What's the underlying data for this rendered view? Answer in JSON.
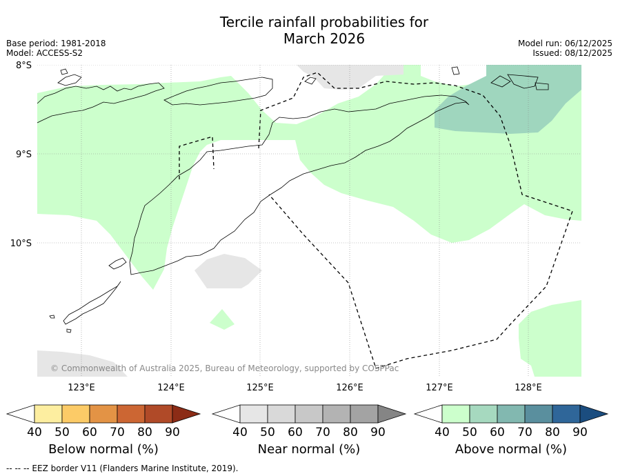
{
  "title_line1": "Tercile rainfall probabilities for",
  "title_line2": "March 2026",
  "base_period": "Base period: 1981-2018",
  "model": "Model: ACCESS-S2",
  "model_run": "Model run: 06/12/2025",
  "issued": "Issued: 08/12/2025",
  "copyright": "© Commonwealth of Australia 2025, Bureau of Meteorology, supported by COSPPac",
  "lat_labels": [
    "8°S",
    "9°S",
    "10°S"
  ],
  "lon_labels": [
    "123°E",
    "124°E",
    "125°E",
    "126°E",
    "127°E",
    "128°E"
  ],
  "colorbars": [
    {
      "title": "Below normal (%)",
      "ticks": [
        "40",
        "50",
        "60",
        "70",
        "80",
        "90"
      ],
      "colors": [
        "#ffffff",
        "#fdeea0",
        "#fccb67",
        "#e39345",
        "#cc6633",
        "#b04a28",
        "#8c2c16"
      ]
    },
    {
      "title": "Near normal (%)",
      "ticks": [
        "40",
        "50",
        "60",
        "70",
        "80",
        "90"
      ],
      "colors": [
        "#ffffff",
        "#e6e6e6",
        "#d9d9d9",
        "#c8c8c8",
        "#b3b3b3",
        "#a3a3a3",
        "#858585"
      ]
    },
    {
      "title": "Above normal (%)",
      "ticks": [
        "40",
        "50",
        "60",
        "70",
        "80",
        "90"
      ],
      "colors": [
        "#ffffff",
        "#ccffcc",
        "#a6d9bf",
        "#82b8b0",
        "#5a8f9e",
        "#2f6699",
        "#1b4d7f"
      ]
    }
  ],
  "footer": "-- -- -- EEZ border V11 (Flanders Marine Institute, 2019).",
  "map_colors": {
    "above_40": "#ccffcc",
    "above_50": "#9fd6be",
    "near_40": "#e6e6e6"
  }
}
